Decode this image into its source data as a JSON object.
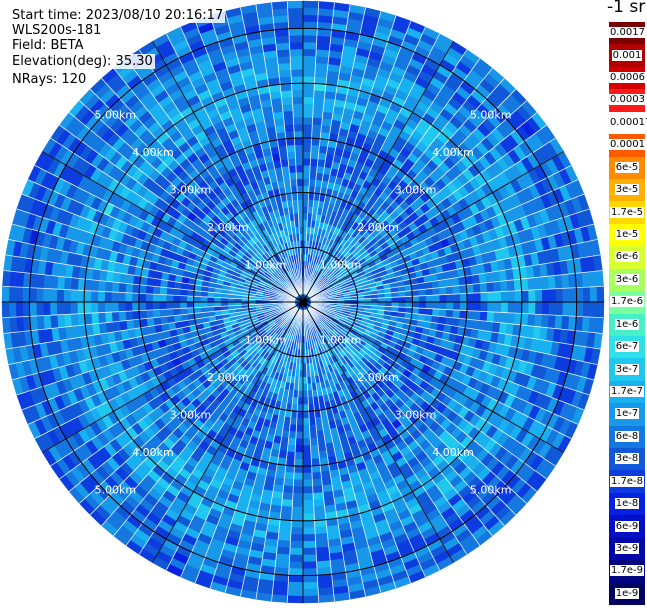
{
  "header": {
    "start_time": "Start time: 2023/08/10 20:16:17",
    "instrument": "WLS200s-181",
    "field": "Field: BETA",
    "elevation": "Elevation(deg): 35.30",
    "nrays": "NRays: 120"
  },
  "colorbar": {
    "unit_text": "-1 sr",
    "labels": [
      "0.0017",
      "0.001",
      "0.0006",
      "0.0003",
      "0.00017",
      "0.0001",
      "6e-5",
      "3e-5",
      "1.7e-5",
      "1e-5",
      "6e-6",
      "3e-6",
      "1.7e-6",
      "1e-6",
      "6e-7",
      "3e-7",
      "1.7e-7",
      "1e-7",
      "6e-8",
      "3e-8",
      "1.7e-8",
      "1e-8",
      "6e-9",
      "3e-9",
      "1.7e-9",
      "1e-9"
    ],
    "colors": [
      "#7a0000",
      "#b00000",
      "#d40000",
      "#ff1a1a",
      "#ffffff",
      "#ff5a00",
      "#ff8c00",
      "#ffb000",
      "#ffd800",
      "#ffff00",
      "#d8ff30",
      "#a8ff60",
      "#78ffa0",
      "#48f0c8",
      "#30e0e8",
      "#20c8f0",
      "#18b0f0",
      "#1898e8",
      "#1478e0",
      "#1058d8",
      "#0c3ce0",
      "#0820e0",
      "#0410c8",
      "#0008a8",
      "#000680",
      "#000460"
    ]
  },
  "chart_data": {
    "type": "ppi",
    "title": "",
    "field": "BETA",
    "units": "-1 sr",
    "elevation_deg": 35.3,
    "n_rays": 120,
    "max_range_km": 5.5,
    "range_rings_km": [
      1.0,
      2.0,
      3.0,
      4.0,
      5.0
    ],
    "range_ring_labels": [
      "1.00km",
      "2.00km",
      "3.00km",
      "4.00km",
      "5.00km"
    ],
    "spokes_deg": [
      0,
      30,
      60,
      90,
      120,
      150,
      180,
      210,
      240,
      270,
      300,
      330
    ],
    "dominant_value_range": [
      "1e-8",
      "1e-7"
    ],
    "color_scale": "log"
  }
}
